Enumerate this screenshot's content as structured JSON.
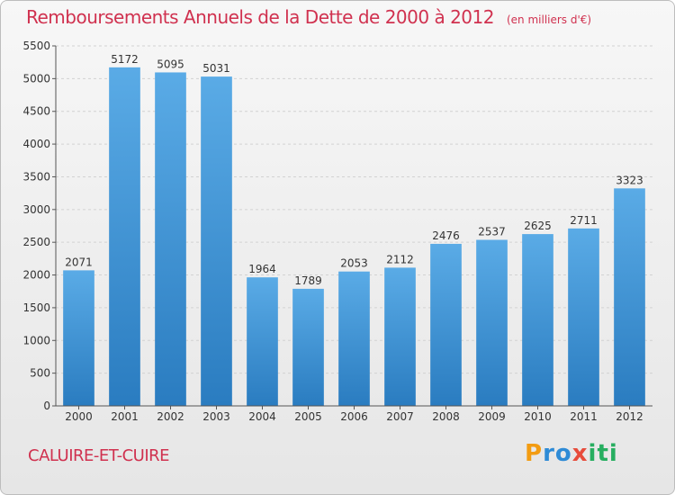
{
  "header": {
    "title": "Remboursements Annuels de la Dette de 2000 à 2012",
    "subtitle": "(en milliers d'€)"
  },
  "commune": "CALUIRE-ET-CUIRE",
  "logo": {
    "parts": [
      "P",
      "ro",
      "x",
      "iti"
    ]
  },
  "colors": {
    "bar_top": "#5aabe6",
    "bar_bottom": "#2a7cc0",
    "title": "#d0314f"
  },
  "chart_data": {
    "type": "bar",
    "categories": [
      "2000",
      "2001",
      "2002",
      "2003",
      "2004",
      "2005",
      "2006",
      "2007",
      "2008",
      "2009",
      "2010",
      "2011",
      "2012"
    ],
    "values": [
      2071,
      5172,
      5095,
      5031,
      1964,
      1789,
      2053,
      2112,
      2476,
      2537,
      2625,
      2711,
      3323
    ],
    "ylim": [
      0,
      5500
    ],
    "yticks": [
      0,
      500,
      1000,
      1500,
      2000,
      2500,
      3000,
      3500,
      4000,
      4500,
      5000,
      5500
    ],
    "grid": true
  }
}
